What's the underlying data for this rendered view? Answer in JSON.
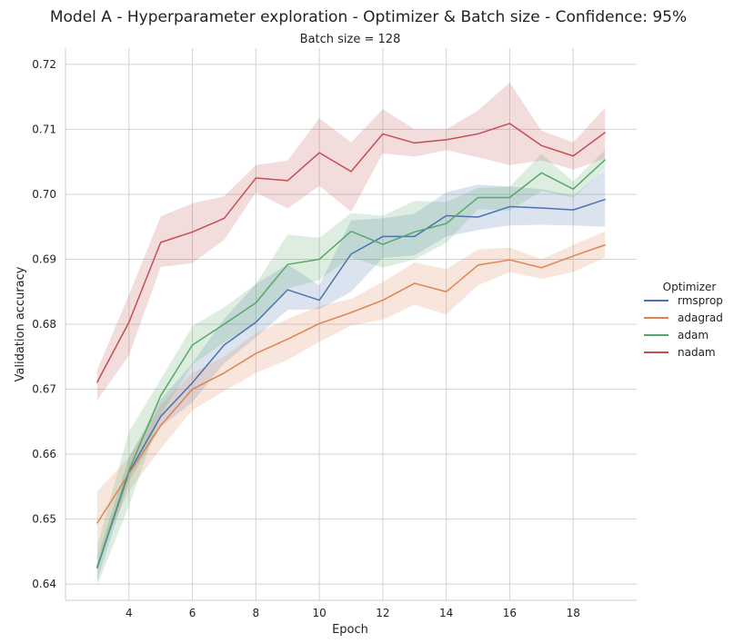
{
  "chart_data": {
    "type": "line",
    "title": "Model A - Hyperparameter exploration - Optimizer & Batch size - Confidence: 95%",
    "subtitle": "Batch size = 128",
    "xlabel": "Epoch",
    "ylabel": "Validation accuracy",
    "x": [
      3,
      4,
      5,
      6,
      7,
      8,
      9,
      10,
      11,
      12,
      13,
      14,
      15,
      16,
      17,
      18,
      19
    ],
    "xlim": [
      2.0,
      20.0
    ],
    "ylim": [
      0.6375,
      0.7225
    ],
    "xticks": [
      4,
      6,
      8,
      10,
      12,
      14,
      16,
      18
    ],
    "yticks": [
      0.64,
      0.65,
      0.66,
      0.67,
      0.68,
      0.69,
      0.7,
      0.71,
      0.72
    ],
    "xtick_labels": [
      "4",
      "6",
      "8",
      "10",
      "12",
      "14",
      "16",
      "18"
    ],
    "ytick_labels": [
      "0.64",
      "0.65",
      "0.66",
      "0.67",
      "0.68",
      "0.69",
      "0.70",
      "0.71",
      "0.72"
    ],
    "grid": true,
    "legend": {
      "title": "Optimizer",
      "placement": "right"
    },
    "confidence_interval": "95%",
    "series": [
      {
        "name": "rmsprop",
        "color": "#4c72b0",
        "values": [
          0.6425,
          0.6572,
          0.6658,
          0.671,
          0.6768,
          0.6803,
          0.6853,
          0.6837,
          0.6908,
          0.6935,
          0.6935,
          0.6967,
          0.6965,
          0.6981,
          0.6979,
          0.6976,
          0.6992
        ],
        "lower": [
          0.6405,
          0.6558,
          0.6642,
          0.668,
          0.674,
          0.678,
          0.6822,
          0.6823,
          0.685,
          0.6902,
          0.6906,
          0.6935,
          0.6945,
          0.6952,
          0.6953,
          0.6952,
          0.695
        ],
        "upper": [
          0.644,
          0.6595,
          0.6684,
          0.674,
          0.6808,
          0.6862,
          0.6892,
          0.686,
          0.696,
          0.6963,
          0.697,
          0.7003,
          0.7015,
          0.7012,
          0.7008,
          0.6998,
          0.7037
        ]
      },
      {
        "name": "adagrad",
        "color": "#dd8452",
        "values": [
          0.6494,
          0.657,
          0.6644,
          0.67,
          0.6725,
          0.6755,
          0.6777,
          0.6801,
          0.6818,
          0.6837,
          0.6863,
          0.685,
          0.6891,
          0.6899,
          0.6887,
          0.6905,
          0.6922
        ],
        "lower": [
          0.644,
          0.6543,
          0.6608,
          0.6668,
          0.6697,
          0.6725,
          0.6745,
          0.6773,
          0.6798,
          0.6807,
          0.683,
          0.6815,
          0.686,
          0.688,
          0.687,
          0.688,
          0.6903
        ],
        "upper": [
          0.6543,
          0.6595,
          0.6676,
          0.6725,
          0.675,
          0.6786,
          0.6808,
          0.6828,
          0.6839,
          0.6865,
          0.6895,
          0.6885,
          0.6915,
          0.6918,
          0.69,
          0.6922,
          0.6943
        ]
      },
      {
        "name": "adam",
        "color": "#55a868",
        "values": [
          0.6427,
          0.6575,
          0.669,
          0.6768,
          0.68,
          0.6833,
          0.6892,
          0.69,
          0.6943,
          0.6923,
          0.6942,
          0.6955,
          0.6995,
          0.6995,
          0.7033,
          0.7008,
          0.7053
        ],
        "lower": [
          0.6398,
          0.652,
          0.666,
          0.6738,
          0.6772,
          0.6802,
          0.6855,
          0.6868,
          0.6903,
          0.6887,
          0.69,
          0.6925,
          0.6977,
          0.6975,
          0.7005,
          0.6995,
          0.7038
        ],
        "upper": [
          0.6458,
          0.6635,
          0.6715,
          0.6797,
          0.6826,
          0.6862,
          0.6938,
          0.6933,
          0.6971,
          0.6967,
          0.699,
          0.6988,
          0.701,
          0.7012,
          0.7062,
          0.702,
          0.7068
        ]
      },
      {
        "name": "nadam",
        "color": "#c44e52",
        "values": [
          0.6711,
          0.6803,
          0.6926,
          0.6942,
          0.6963,
          0.7025,
          0.7021,
          0.7064,
          0.7035,
          0.7093,
          0.7079,
          0.7084,
          0.7093,
          0.7109,
          0.7075,
          0.7059,
          0.7095
        ],
        "lower": [
          0.6683,
          0.6752,
          0.6888,
          0.6894,
          0.693,
          0.7003,
          0.6978,
          0.7013,
          0.6973,
          0.7063,
          0.7058,
          0.7068,
          0.7057,
          0.7045,
          0.7052,
          0.7038,
          0.7055
        ],
        "upper": [
          0.673,
          0.6845,
          0.6966,
          0.6986,
          0.6997,
          0.7045,
          0.7052,
          0.7117,
          0.708,
          0.7131,
          0.71,
          0.71,
          0.7129,
          0.7172,
          0.7098,
          0.708,
          0.7133
        ]
      }
    ]
  }
}
